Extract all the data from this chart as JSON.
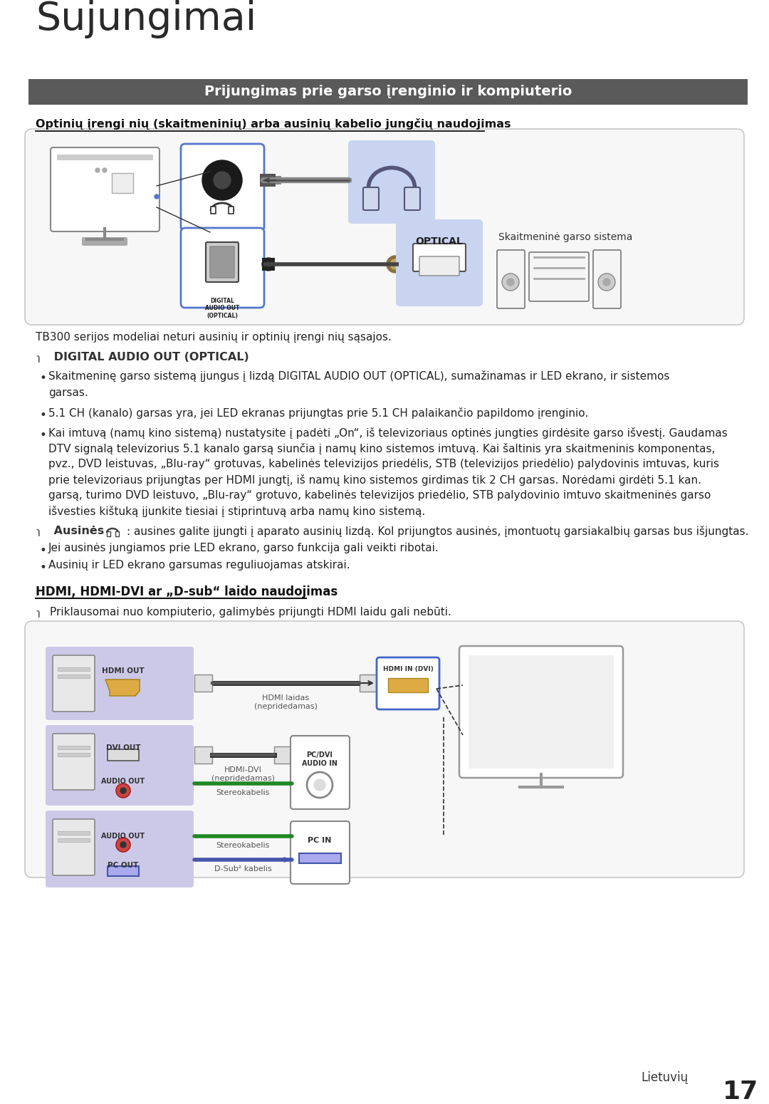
{
  "title": "Sujungimai",
  "header_bar_text": "Prijungimas prie garso įrenginio ir kompiuterio",
  "header_bar_color": "#5a5a5a",
  "header_bar_text_color": "#ffffff",
  "section1_heading": "Optinių įrengi nių (skaitmeninių) arba ausinių kabelio jungčių naudojimas",
  "tb300_text": "TB300 serijos modeliai neturi ausinių ir optinių įrengi nių sąsajos.",
  "digital_audio_heading": "DIGITAL AUDIO OUT (OPTICAL)",
  "bullet1": "Skaitmeninę garso sistemą įjungus į lizdą DIGITAL AUDIO OUT (OPTICAL), sumažinamas ir LED ekrano, ir sistemos\ngarsas.",
  "bullet2": "5.1 CH (kanalo) garsas yra, jei LED ekranas prijungtas prie 5.1 CH palaikančio papildomo įrenginio.",
  "bullet3_lines": [
    "Kai imtuvą (namų kino sistemą) nustatysite į padėti „On“, iš televizoriaus optinės jungties girdėsite garso išvestį. Gaudamas",
    "DTV signalą televizorius 5.1 kanalo garsą siunčia į namų kino sistemos imtuvą. Kai šaltinis yra skaitmeninis komponentas,",
    "pvz., DVD leistuvas, „Blu-ray“ grotuvas, kabelinės televizijos priedėlis, STB (televizijos priedėlio) palydovinis imtuvas, kuris",
    "prie televizoriaus prijungtas per HDMI jungtį, iš namų kino sistemos girdimas tik 2 CH garsas. Norėdami girdėti 5.1 kan.",
    "garsą, turimo DVD leistuvo, „Blu-ray“ grotuvo, kabelinės televizijos priedėlio, STB palydovinio imtuvo skaitmeninės garso",
    "išvesties kištuką įjunkite tiesiai į stiprintuvą arba namų kino sistemą."
  ],
  "ausines_heading": "Ausinės",
  "ausines_text": ": ausines galite įjungti į aparato ausinių lizdą. Kol prijungtos ausinės, įmontuotų garsiakalbių garsas bus išjungtas.",
  "ausines_bullet1": "Jei ausinės jungiamos prie LED ekrano, garso funkcija gali veikti ribotai.",
  "ausines_bullet2": "Ausinių ir LED ekrano garsumas reguliuojamas atskirai.",
  "hdmi_heading": "HDMI, HDMI-DVI ar „D-sub“ laido naudojimas",
  "hdmi_note": "Priklausomai nuo kompiuterio, galimybės prijungti HDMI laidu gali nebūti.",
  "page_text": "Lietuvių",
  "page_number": "17",
  "bg_color": "#ffffff",
  "blue_highlight": "#c8d4f0",
  "purple_highlight": "#ccc8e8",
  "diag_bg": "#f7f7f7",
  "diag_border": "#c8c8c8"
}
